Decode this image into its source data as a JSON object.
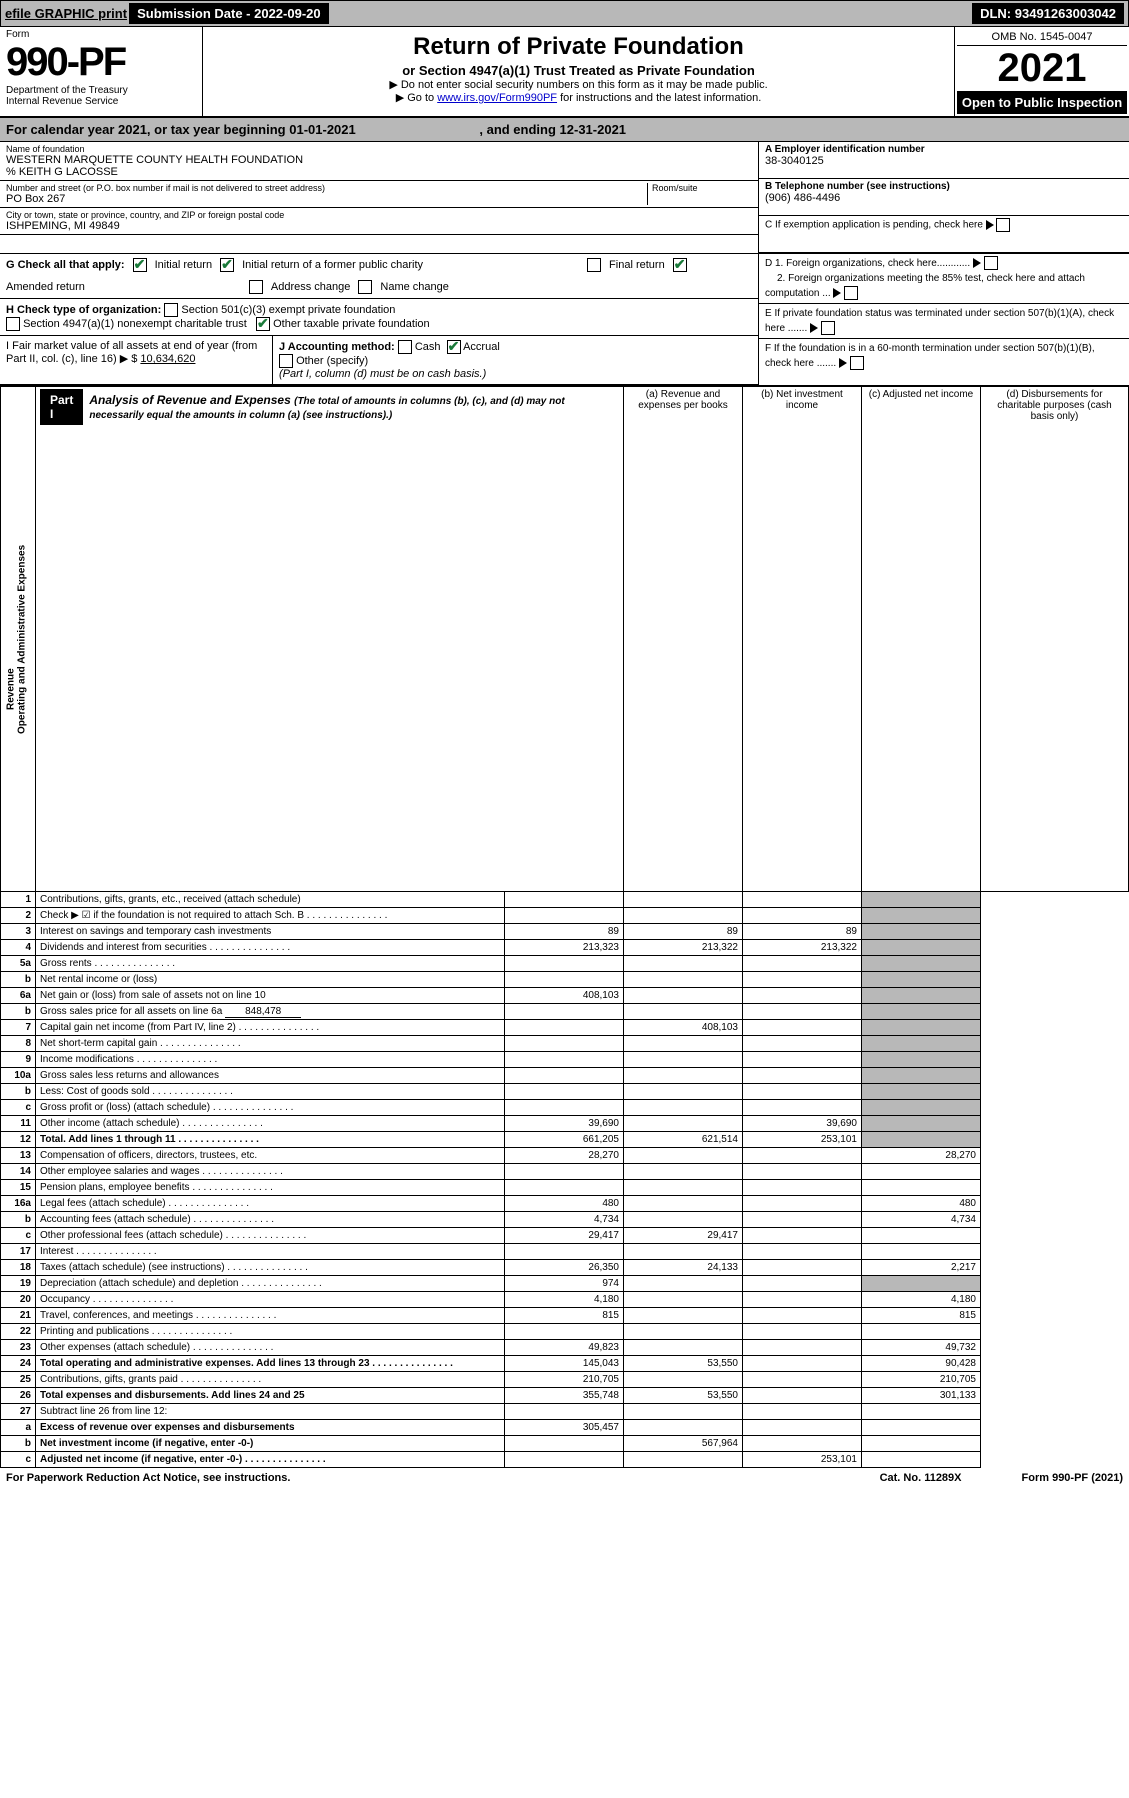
{
  "topbar": {
    "efile": "efile GRAPHIC print",
    "subdate_lbl": "Submission Date - ",
    "subdate": "2022-09-20",
    "dln_lbl": "DLN: ",
    "dln": "93491263003042"
  },
  "header": {
    "form_word": "Form",
    "form_no": "990-PF",
    "dept": "Department of the Treasury",
    "irs": "Internal Revenue Service",
    "title": "Return of Private Foundation",
    "sub": "or Section 4947(a)(1) Trust Treated as Private Foundation",
    "note1": "▶ Do not enter social security numbers on this form as it may be made public.",
    "note2_pre": "▶ Go to ",
    "note2_link": "www.irs.gov/Form990PF",
    "note2_post": " for instructions and the latest information.",
    "omb": "OMB No. 1545-0047",
    "year": "2021",
    "open": "Open to Public Inspection"
  },
  "calyear": {
    "pre": "For calendar year 2021, or tax year beginning ",
    "start": "01-01-2021",
    "mid": ", and ending ",
    "end": "12-31-2021"
  },
  "info": {
    "name_lbl": "Name of foundation",
    "name": "WESTERN MARQUETTE COUNTY HEALTH FOUNDATION",
    "care": "% KEITH G LACOSSE",
    "addr_lbl": "Number and street (or P.O. box number if mail is not delivered to street address)",
    "room_lbl": "Room/suite",
    "addr": "PO Box 267",
    "city_lbl": "City or town, state or province, country, and ZIP or foreign postal code",
    "city": "ISHPEMING, MI  49849",
    "a_lbl": "A Employer identification number",
    "a_val": "38-3040125",
    "b_lbl": "B Telephone number (see instructions)",
    "b_val": "(906) 486-4496",
    "c_lbl": "C If exemption application is pending, check here",
    "d1": "D 1. Foreign organizations, check here............",
    "d2": "2. Foreign organizations meeting the 85% test, check here and attach computation ...",
    "e": "E  If private foundation status was terminated under section 507(b)(1)(A), check here .......",
    "f": "F  If the foundation is in a 60-month termination under section 507(b)(1)(B), check here ......."
  },
  "g": {
    "lbl": "G Check all that apply:",
    "opts": [
      "Initial return",
      "Initial return of a former public charity",
      "Final return",
      "Amended return",
      "Address change",
      "Name change"
    ]
  },
  "h": {
    "lbl": "H Check type of organization:",
    "o1": "Section 501(c)(3) exempt private foundation",
    "o2": "Section 4947(a)(1) nonexempt charitable trust",
    "o3": "Other taxable private foundation"
  },
  "i": {
    "lbl": "I Fair market value of all assets at end of year (from Part II, col. (c), line 16) ▶ $",
    "val": "10,634,620"
  },
  "j": {
    "lbl": "J Accounting method:",
    "o1": "Cash",
    "o2": "Accrual",
    "o3": "Other (specify)",
    "note": "(Part I, column (d) must be on cash basis.)"
  },
  "part1": {
    "label": "Part I",
    "title": "Analysis of Revenue and Expenses",
    "desc": "(The total of amounts in columns (b), (c), and (d) may not necessarily equal the amounts in column (a) (see instructions).)",
    "cols": [
      "(a) Revenue and expenses per books",
      "(b) Net investment income",
      "(c) Adjusted net income",
      "(d) Disbursements for charitable purposes (cash basis only)"
    ]
  },
  "sidelabels": {
    "rev": "Revenue",
    "exp": "Operating and Administrative Expenses"
  },
  "rows": [
    {
      "n": "1",
      "d": "Contributions, gifts, grants, etc., received (attach schedule)"
    },
    {
      "n": "2",
      "d": "Check ▶ ☑ if the foundation is not required to attach Sch. B",
      "dots": true
    },
    {
      "n": "3",
      "d": "Interest on savings and temporary cash investments",
      "a": "89",
      "b": "89",
      "c": "89"
    },
    {
      "n": "4",
      "d": "Dividends and interest from securities",
      "dots": true,
      "a": "213,323",
      "b": "213,322",
      "c": "213,322"
    },
    {
      "n": "5a",
      "d": "Gross rents",
      "dots": true
    },
    {
      "n": "b",
      "d": "Net rental income or (loss)",
      "inline": true
    },
    {
      "n": "6a",
      "d": "Net gain or (loss) from sale of assets not on line 10",
      "a": "408,103"
    },
    {
      "n": "b",
      "d": "Gross sales price for all assets on line 6a",
      "inline_val": "848,478"
    },
    {
      "n": "7",
      "d": "Capital gain net income (from Part IV, line 2)",
      "dots": true,
      "b": "408,103"
    },
    {
      "n": "8",
      "d": "Net short-term capital gain",
      "dots": true
    },
    {
      "n": "9",
      "d": "Income modifications",
      "dots": true
    },
    {
      "n": "10a",
      "d": "Gross sales less returns and allowances",
      "inline": true
    },
    {
      "n": "b",
      "d": "Less: Cost of goods sold",
      "dots": true,
      "inline": true
    },
    {
      "n": "c",
      "d": "Gross profit or (loss) (attach schedule)",
      "dots": true
    },
    {
      "n": "11",
      "d": "Other income (attach schedule)",
      "dots": true,
      "a": "39,690",
      "c": "39,690"
    },
    {
      "n": "12",
      "d": "Total. Add lines 1 through 11",
      "bold": true,
      "dots": true,
      "a": "661,205",
      "b": "621,514",
      "c": "253,101"
    },
    {
      "n": "13",
      "d": "Compensation of officers, directors, trustees, etc.",
      "a": "28,270",
      "dd": "28,270"
    },
    {
      "n": "14",
      "d": "Other employee salaries and wages",
      "dots": true
    },
    {
      "n": "15",
      "d": "Pension plans, employee benefits",
      "dots": true
    },
    {
      "n": "16a",
      "d": "Legal fees (attach schedule)",
      "dots": true,
      "a": "480",
      "dd": "480"
    },
    {
      "n": "b",
      "d": "Accounting fees (attach schedule)",
      "dots": true,
      "a": "4,734",
      "dd": "4,734"
    },
    {
      "n": "c",
      "d": "Other professional fees (attach schedule)",
      "dots": true,
      "a": "29,417",
      "b": "29,417"
    },
    {
      "n": "17",
      "d": "Interest",
      "dots": true
    },
    {
      "n": "18",
      "d": "Taxes (attach schedule) (see instructions)",
      "dots": true,
      "a": "26,350",
      "b": "24,133",
      "dd": "2,217"
    },
    {
      "n": "19",
      "d": "Depreciation (attach schedule) and depletion",
      "dots": true,
      "a": "974"
    },
    {
      "n": "20",
      "d": "Occupancy",
      "dots": true,
      "a": "4,180",
      "dd": "4,180"
    },
    {
      "n": "21",
      "d": "Travel, conferences, and meetings",
      "dots": true,
      "a": "815",
      "dd": "815"
    },
    {
      "n": "22",
      "d": "Printing and publications",
      "dots": true
    },
    {
      "n": "23",
      "d": "Other expenses (attach schedule)",
      "dots": true,
      "a": "49,823",
      "dd": "49,732"
    },
    {
      "n": "24",
      "d": "Total operating and administrative expenses. Add lines 13 through 23",
      "bold": true,
      "dots": true,
      "a": "145,043",
      "b": "53,550",
      "dd": "90,428"
    },
    {
      "n": "25",
      "d": "Contributions, gifts, grants paid",
      "dots": true,
      "a": "210,705",
      "dd": "210,705"
    },
    {
      "n": "26",
      "d": "Total expenses and disbursements. Add lines 24 and 25",
      "bold": true,
      "a": "355,748",
      "b": "53,550",
      "dd": "301,133"
    },
    {
      "n": "27",
      "d": "Subtract line 26 from line 12:"
    },
    {
      "n": "a",
      "d": "Excess of revenue over expenses and disbursements",
      "bold": true,
      "a": "305,457"
    },
    {
      "n": "b",
      "d": "Net investment income (if negative, enter -0-)",
      "bold": true,
      "b": "567,964"
    },
    {
      "n": "c",
      "d": "Adjusted net income (if negative, enter -0-)",
      "bold": true,
      "dots": true,
      "c": "253,101"
    }
  ],
  "footer": {
    "l": "For Paperwork Reduction Act Notice, see instructions.",
    "m": "Cat. No. 11289X",
    "r": "Form 990-PF (2021)"
  }
}
